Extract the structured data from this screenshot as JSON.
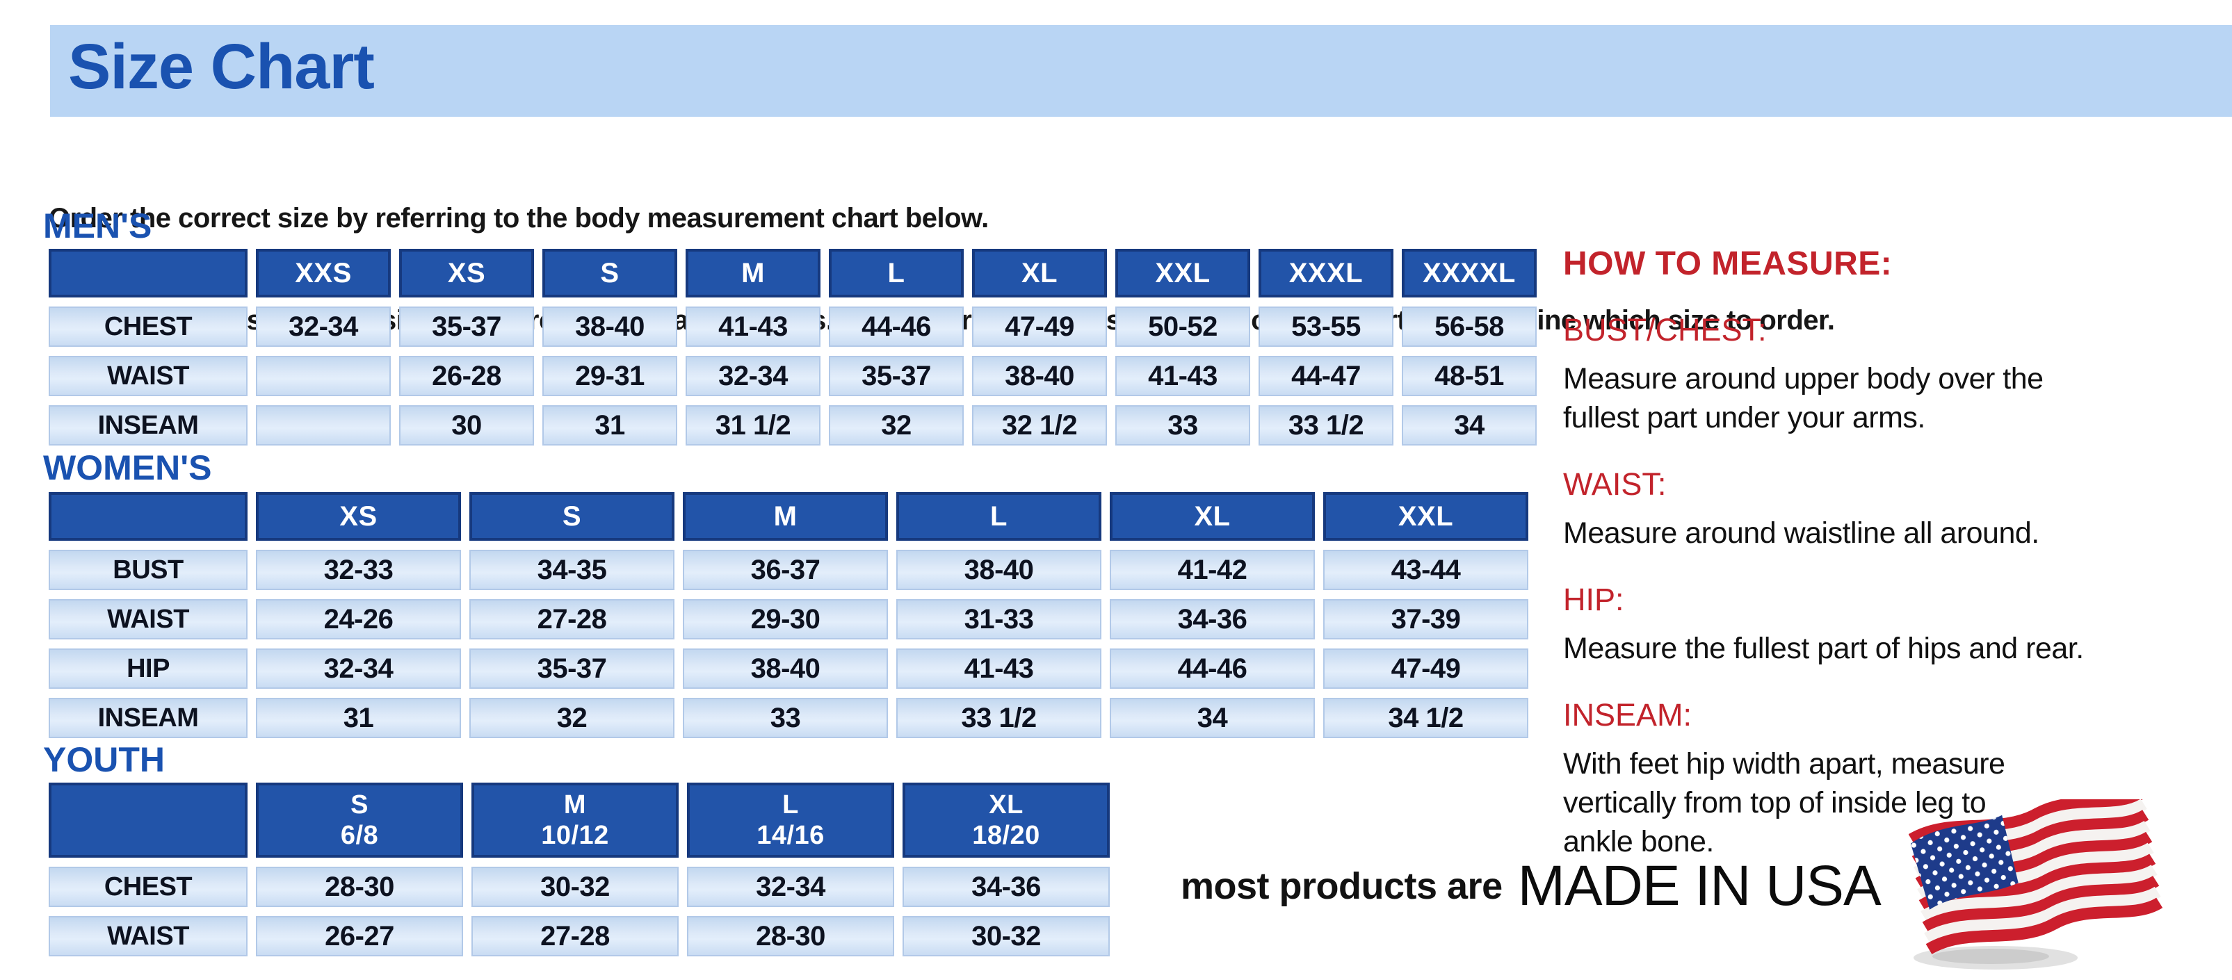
{
  "page": {
    "title": "Size Chart",
    "intro_line1": "Order the correct size by referring to the body measurement chart below.",
    "intro_line2": "Measurements shown on size chart are body measurements.  Find your body measurements on the chart to determine which size to order."
  },
  "tables": {
    "mens": {
      "section_label": "MEN'S",
      "columns": [
        "XXS",
        "XS",
        "S",
        "M",
        "L",
        "XL",
        "XXL",
        "XXXL",
        "XXXXL"
      ],
      "rows": [
        {
          "label": "CHEST",
          "values": [
            "32-34",
            "35-37",
            "38-40",
            "41-43",
            "44-46",
            "47-49",
            "50-52",
            "53-55",
            "56-58"
          ]
        },
        {
          "label": "WAIST",
          "values": [
            "",
            "26-28",
            "29-31",
            "32-34",
            "35-37",
            "38-40",
            "41-43",
            "44-47",
            "48-51"
          ]
        },
        {
          "label": "INSEAM",
          "values": [
            "",
            "30",
            "31",
            "31 1/2",
            "32",
            "32 1/2",
            "33",
            "33 1/2",
            "34"
          ]
        }
      ]
    },
    "womens": {
      "section_label": "WOMEN'S",
      "columns": [
        "XS",
        "S",
        "M",
        "L",
        "XL",
        "XXL"
      ],
      "rows": [
        {
          "label": "BUST",
          "values": [
            "32-33",
            "34-35",
            "36-37",
            "38-40",
            "41-42",
            "43-44"
          ]
        },
        {
          "label": "WAIST",
          "values": [
            "24-26",
            "27-28",
            "29-30",
            "31-33",
            "34-36",
            "37-39"
          ]
        },
        {
          "label": "HIP",
          "values": [
            "32-34",
            "35-37",
            "38-40",
            "41-43",
            "44-46",
            "47-49"
          ]
        },
        {
          "label": "INSEAM",
          "values": [
            "31",
            "32",
            "33",
            "33 1/2",
            "34",
            "34 1/2"
          ]
        }
      ]
    },
    "youth": {
      "section_label": "YOUTH",
      "columns": [
        {
          "size": "S",
          "sub": "6/8"
        },
        {
          "size": "M",
          "sub": "10/12"
        },
        {
          "size": "L",
          "sub": "14/16"
        },
        {
          "size": "XL",
          "sub": "18/20"
        }
      ],
      "rows": [
        {
          "label": "CHEST",
          "values": [
            "28-30",
            "30-32",
            "32-34",
            "34-36"
          ]
        },
        {
          "label": "WAIST",
          "values": [
            "26-27",
            "27-28",
            "28-30",
            "30-32"
          ]
        }
      ]
    }
  },
  "how_to_measure": {
    "title": "HOW TO MEASURE:",
    "items": [
      {
        "label": "BUST/CHEST:",
        "text": "Measure around upper body over the\nfullest part under your arms."
      },
      {
        "label": "WAIST:",
        "text": "Measure around waistline all around."
      },
      {
        "label": "HIP:",
        "text": "Measure the fullest part of hips and rear."
      },
      {
        "label": "INSEAM:",
        "text": "With feet hip width apart, measure\nvertically from top of inside leg to\nankle bone."
      }
    ]
  },
  "footer": {
    "prefix": "most products are",
    "made_in": "MADE IN USA",
    "flag_icon": "us-flag-icon"
  },
  "colors": {
    "banner_blue": "#b9d5f4",
    "heading_blue": "#1a52b0",
    "table_header_blue": "#2254a9",
    "table_header_border": "#16397e",
    "cell_light_blue": "#cfe0f5",
    "accent_red": "#c2232b",
    "flag_red": "#cc1f2d",
    "flag_navy": "#1e3b8a",
    "text_dark": "#141414"
  }
}
